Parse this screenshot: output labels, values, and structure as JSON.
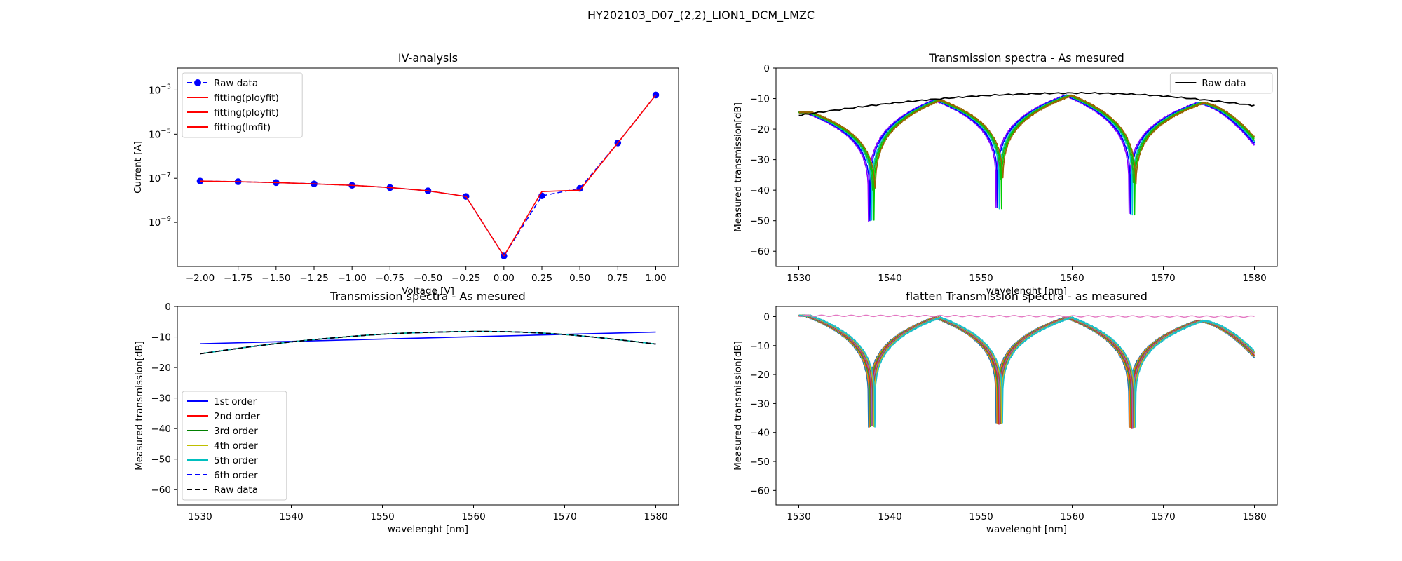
{
  "suptitle": "HY202103_D07_(2,2)_LION1_DCM_LMZC",
  "chart_data": [
    {
      "id": "iv",
      "type": "line",
      "title": "IV-analysis",
      "xlabel": "Voltage [V]",
      "ylabel": "Current [A]",
      "yscale": "log",
      "xlim": [
        -2.15,
        1.15
      ],
      "ylim": [
        1e-11,
        0.01
      ],
      "xticks": [
        -2.0,
        -1.75,
        -1.5,
        -1.25,
        -1.0,
        -0.75,
        -0.5,
        -0.25,
        0.0,
        0.25,
        0.5,
        0.75,
        1.0
      ],
      "xtick_labels": [
        "−2.00",
        "−1.75",
        "−1.50",
        "−1.25",
        "−1.00",
        "−0.75",
        "−0.50",
        "−0.25",
        "0.00",
        "0.25",
        "0.50",
        "0.75",
        "1.00"
      ],
      "ytick_exponents": [
        -9,
        -7,
        -5,
        -3
      ],
      "legend": "top-left",
      "series": [
        {
          "name": "Raw data",
          "color": "#0000ff",
          "dash": "dashed",
          "marker": true,
          "x": [
            -2.0,
            -1.75,
            -1.5,
            -1.25,
            -1.0,
            -0.75,
            -0.5,
            -0.25,
            0.0,
            0.25,
            0.5,
            0.75,
            1.0
          ],
          "y": [
            7.5e-08,
            7e-08,
            6.4e-08,
            5.6e-08,
            4.8e-08,
            3.8e-08,
            2.7e-08,
            1.5e-08,
            3e-11,
            1.6e-08,
            3.5e-08,
            4e-06,
            0.0006
          ]
        },
        {
          "name": "fitting(ployfit)",
          "color": "#ff0000",
          "dash": "solid",
          "x": [
            -2.0,
            -1.75,
            -1.5,
            -1.25,
            -1.0,
            -0.75,
            -0.5,
            -0.25,
            0.0
          ],
          "y": [
            7.5e-08,
            7e-08,
            6.4e-08,
            5.6e-08,
            4.8e-08,
            3.8e-08,
            2.7e-08,
            1.5e-08,
            3e-11
          ]
        },
        {
          "name": "fitting(ployfit)",
          "color": "#ff0000",
          "dash": "solid",
          "x": [
            0.0,
            0.25
          ],
          "y": [
            3e-11,
            2.5e-08
          ]
        },
        {
          "name": "fitting(lmfit)",
          "color": "#ff0000",
          "dash": "solid",
          "x": [
            0.25,
            0.5,
            0.75,
            1.0
          ],
          "y": [
            2.5e-08,
            2.9e-08,
            4e-06,
            0.0006
          ]
        }
      ]
    },
    {
      "id": "ts1",
      "type": "line",
      "title": "Transmission spectra - As mesured",
      "xlabel": "wavelenght [nm]",
      "ylabel": "Measured transmission[dB]",
      "xlim": [
        1527.5,
        1582.5
      ],
      "ylim": [
        -65,
        0
      ],
      "xticks": [
        1530,
        1540,
        1550,
        1560,
        1570,
        1580
      ],
      "yticks": [
        0,
        -10,
        -20,
        -30,
        -40,
        -50,
        -60
      ],
      "legend": "top-right",
      "reference": {
        "name": "Raw data",
        "color": "#000000",
        "x": [
          1530,
          1535,
          1540,
          1545,
          1550,
          1555,
          1560,
          1565,
          1570,
          1575,
          1580
        ],
        "y": [
          -15.5,
          -13.4,
          -11.6,
          -10.2,
          -9.1,
          -8.5,
          -8.2,
          -8.4,
          -9.2,
          -10.6,
          -12.3
        ]
      },
      "spectra": {
        "dips": [
          1538.0,
          1552.0,
          1566.6
        ],
        "dip_depths": [
          -50,
          -46,
          -48
        ],
        "peaks": [
          1531.0,
          1545.2,
          1559.6,
          1574.0
        ],
        "peak_levels": [
          -14.5,
          -10.5,
          -9.0,
          -11.5
        ],
        "end_level": -24,
        "colors": [
          "#8800ff",
          "#0000ff",
          "#00cccc",
          "#22aa22",
          "#00cc00",
          "#996600"
        ],
        "shifts": [
          -0.35,
          -0.2,
          0.0,
          0.12,
          0.25,
          0.38
        ]
      }
    },
    {
      "id": "fit",
      "type": "line",
      "title": "Transmission spectra - As mesured",
      "xlabel": "wavelenght [nm]",
      "ylabel": "Measured transmission[dB]",
      "xlim": [
        1527.5,
        1582.5
      ],
      "ylim": [
        -65,
        0
      ],
      "xticks": [
        1530,
        1540,
        1550,
        1560,
        1570,
        1580
      ],
      "yticks": [
        0,
        -10,
        -20,
        -30,
        -40,
        -50,
        -60
      ],
      "legend": "bottom-left",
      "series": [
        {
          "name": "1st order",
          "color": "#0000ff",
          "dash": "solid",
          "x": [
            1530,
            1580
          ],
          "y": [
            -12.2,
            -8.4
          ]
        },
        {
          "name": "2nd order",
          "color": "#ff0000",
          "dash": "solid",
          "x": [
            1530,
            1535,
            1540,
            1545,
            1550,
            1555,
            1560,
            1565,
            1570,
            1575,
            1580
          ],
          "y": [
            -15.5,
            -13.4,
            -11.6,
            -10.2,
            -9.1,
            -8.5,
            -8.2,
            -8.4,
            -9.2,
            -10.6,
            -12.3
          ]
        },
        {
          "name": "3rd order",
          "color": "#008000",
          "dash": "solid",
          "x": [
            1530,
            1535,
            1540,
            1545,
            1550,
            1555,
            1560,
            1565,
            1570,
            1575,
            1580
          ],
          "y": [
            -15.5,
            -13.4,
            -11.6,
            -10.2,
            -9.1,
            -8.5,
            -8.2,
            -8.4,
            -9.2,
            -10.6,
            -12.3
          ]
        },
        {
          "name": "4th order",
          "color": "#bfbf00",
          "dash": "solid",
          "x": [
            1530,
            1535,
            1540,
            1545,
            1550,
            1555,
            1560,
            1565,
            1570,
            1575,
            1580
          ],
          "y": [
            -15.5,
            -13.4,
            -11.6,
            -10.2,
            -9.1,
            -8.5,
            -8.2,
            -8.4,
            -9.2,
            -10.6,
            -12.3
          ]
        },
        {
          "name": "5th order",
          "color": "#00bfbf",
          "dash": "solid",
          "x": [
            1530,
            1535,
            1540,
            1545,
            1550,
            1555,
            1560,
            1565,
            1570,
            1575,
            1580
          ],
          "y": [
            -15.5,
            -13.4,
            -11.6,
            -10.2,
            -9.1,
            -8.5,
            -8.2,
            -8.4,
            -9.2,
            -10.6,
            -12.3
          ]
        },
        {
          "name": "6th order",
          "color": "#0000ff",
          "dash": "dashed",
          "x": [
            1530,
            1535,
            1540,
            1545,
            1550,
            1555,
            1560,
            1565,
            1570,
            1575,
            1580
          ],
          "y": [
            -15.5,
            -13.4,
            -11.6,
            -10.2,
            -9.1,
            -8.5,
            -8.2,
            -8.4,
            -9.2,
            -10.6,
            -12.3
          ]
        },
        {
          "name": "Raw data",
          "color": "#000000",
          "dash": "dashed",
          "x": [
            1530,
            1535,
            1540,
            1545,
            1550,
            1555,
            1560,
            1565,
            1570,
            1575,
            1580
          ],
          "y": [
            -15.5,
            -13.4,
            -11.6,
            -10.2,
            -9.1,
            -8.5,
            -8.2,
            -8.4,
            -9.2,
            -10.6,
            -12.3
          ]
        }
      ]
    },
    {
      "id": "flat",
      "type": "line",
      "title": "flatten Transmission spectra - as measured",
      "xlabel": "wavelenght [nm]",
      "ylabel": "Measured transmission[dB]",
      "xlim": [
        1527.5,
        1582.5
      ],
      "ylim": [
        -65,
        3.5
      ],
      "xticks": [
        1530,
        1540,
        1550,
        1560,
        1570,
        1580
      ],
      "yticks": [
        0,
        -10,
        -20,
        -30,
        -40,
        -50,
        -60
      ],
      "reference": {
        "color": "#e377c2",
        "x": [
          1530,
          1580
        ],
        "y": [
          0.3,
          0.0
        ]
      },
      "spectra": {
        "dips": [
          1538.0,
          1552.0,
          1566.6
        ],
        "dip_depths": [
          -38,
          -37,
          -38.5
        ],
        "peaks": [
          1531.0,
          1545.2,
          1559.6,
          1574.0
        ],
        "peak_levels": [
          0.3,
          -0.3,
          -0.3,
          -1.5
        ],
        "end_level": -13,
        "colors": [
          "#1f77b4",
          "#ff7f0e",
          "#2ca02c",
          "#d62728",
          "#9467bd",
          "#8c564b",
          "#bcbd22",
          "#17becf"
        ],
        "shifts": [
          -0.35,
          -0.25,
          -0.15,
          -0.05,
          0.05,
          0.15,
          0.25,
          0.35
        ]
      }
    }
  ]
}
